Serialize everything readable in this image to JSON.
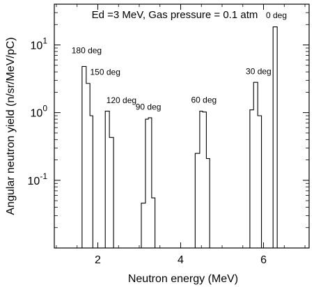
{
  "chart_data": {
    "type": "histogram",
    "title": "Ed =3 MeV, Gas pressure = 0.1 atm",
    "xlabel": "Neutron energy (MeV)",
    "ylabel": "Angular neutron yield (n/sr/MeV/pC)",
    "xlim": [
      0.95,
      7.1
    ],
    "ylim": [
      0.01,
      40
    ],
    "yscale": "log",
    "xticks": [
      2,
      4,
      6
    ],
    "xtick_labels": [
      "2",
      "4",
      "6"
    ],
    "ytick_labels": [
      {
        "base": "10",
        "exp": "-1",
        "value": 0.1
      },
      {
        "base": "10",
        "exp": "0",
        "value": 1
      },
      {
        "base": "10",
        "exp": "1",
        "value": 10
      }
    ],
    "grid": false,
    "series": [
      {
        "name": "180 deg",
        "bins": [
          {
            "x0": 1.62,
            "x1": 1.72,
            "y": 4.8
          },
          {
            "x0": 1.72,
            "x1": 1.81,
            "y": 2.7
          },
          {
            "x0": 1.81,
            "x1": 1.88,
            "y": 0.9
          }
        ]
      },
      {
        "name": "150 deg",
        "bins": [],
        "label_only": true
      },
      {
        "name": "120 deg",
        "bins": [
          {
            "x0": 2.18,
            "x1": 2.28,
            "y": 1.05
          },
          {
            "x0": 2.28,
            "x1": 2.38,
            "y": 0.43
          }
        ]
      },
      {
        "name": "90 deg",
        "bins": [
          {
            "x0": 3.05,
            "x1": 3.15,
            "y": 0.046
          },
          {
            "x0": 3.15,
            "x1": 3.22,
            "y": 0.8
          },
          {
            "x0": 3.22,
            "x1": 3.3,
            "y": 0.84
          },
          {
            "x0": 3.3,
            "x1": 3.38,
            "y": 0.055
          }
        ]
      },
      {
        "name": "60 deg",
        "bins": [
          {
            "x0": 4.35,
            "x1": 4.46,
            "y": 0.25
          },
          {
            "x0": 4.46,
            "x1": 4.53,
            "y": 1.05
          },
          {
            "x0": 4.53,
            "x1": 4.62,
            "y": 1.02
          },
          {
            "x0": 4.62,
            "x1": 4.7,
            "y": 0.21
          }
        ]
      },
      {
        "name": "30 deg",
        "bins": [
          {
            "x0": 5.67,
            "x1": 5.76,
            "y": 1.1
          },
          {
            "x0": 5.76,
            "x1": 5.86,
            "y": 2.8
          },
          {
            "x0": 5.86,
            "x1": 5.95,
            "y": 0.9
          }
        ]
      },
      {
        "name": "0 deg",
        "bins": [
          {
            "x0": 6.23,
            "x1": 6.33,
            "y": 18.5
          }
        ]
      }
    ],
    "annotations": [
      {
        "text": "180 deg",
        "x": 1.73,
        "y": 7.5
      },
      {
        "text": "150 deg",
        "x": 2.18,
        "y": 3.6
      },
      {
        "text": "120 deg",
        "x": 2.57,
        "y": 1.38
      },
      {
        "text": "90 deg",
        "x": 3.22,
        "y": 1.1
      },
      {
        "text": "60 deg",
        "x": 4.56,
        "y": 1.4
      },
      {
        "text": "30 deg",
        "x": 5.88,
        "y": 3.7
      },
      {
        "text": "0 deg",
        "x": 6.31,
        "y": 25
      }
    ]
  }
}
